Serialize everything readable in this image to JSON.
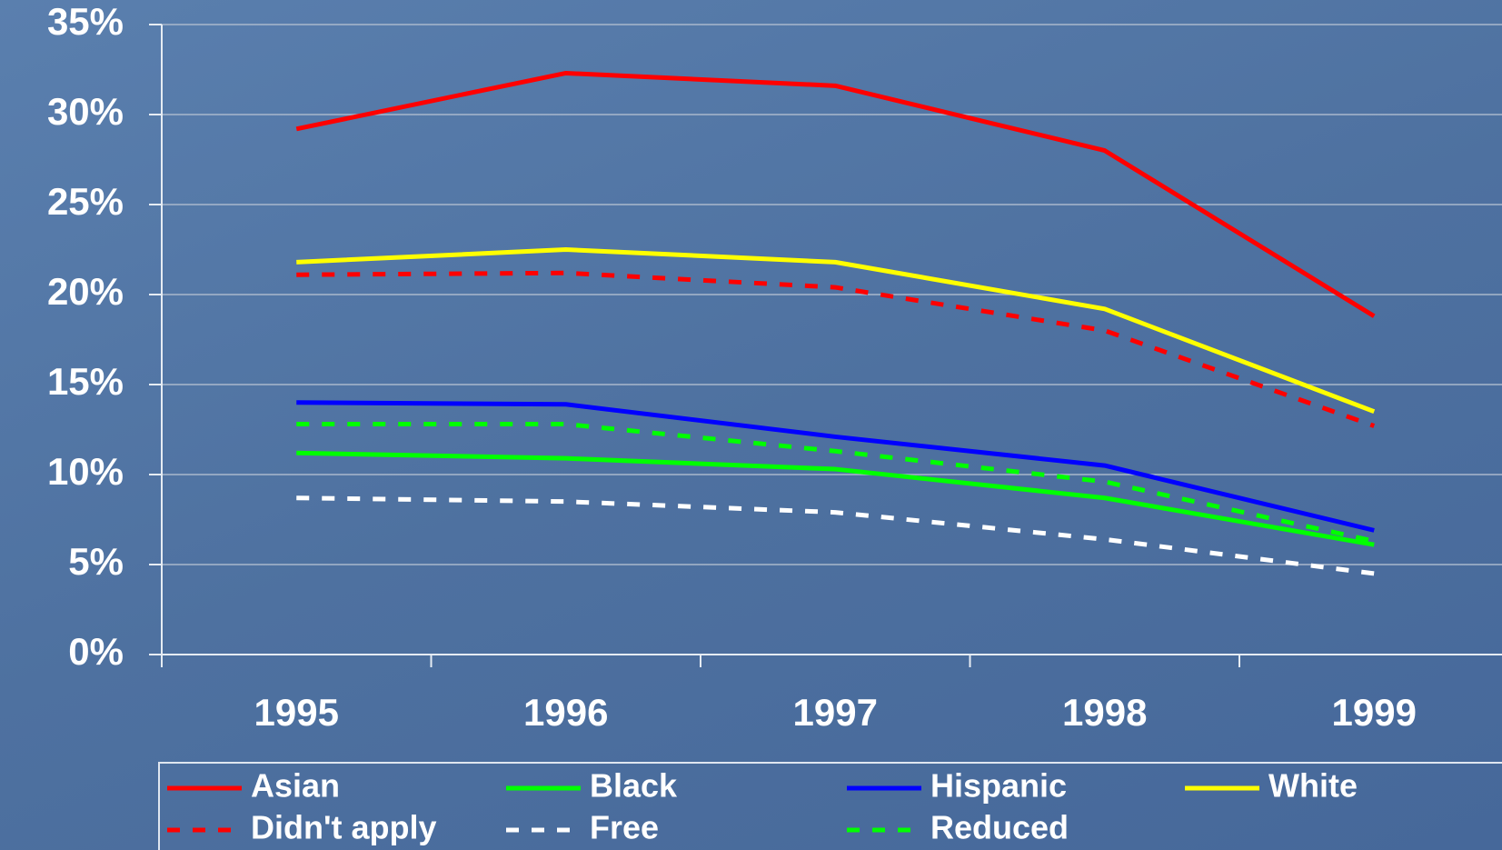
{
  "chart_data": {
    "type": "line",
    "categories": [
      "1995",
      "1996",
      "1997",
      "1998",
      "1999"
    ],
    "series": [
      {
        "name": "Asian",
        "color": "#ff0000",
        "style": "solid",
        "values": [
          29.2,
          32.3,
          31.6,
          28.0,
          18.8
        ]
      },
      {
        "name": "Black",
        "color": "#00ff00",
        "style": "solid",
        "values": [
          11.2,
          10.9,
          10.3,
          8.7,
          6.1
        ]
      },
      {
        "name": "Hispanic",
        "color": "#0000ff",
        "style": "solid",
        "values": [
          14.0,
          13.9,
          12.1,
          10.5,
          6.9
        ]
      },
      {
        "name": "White",
        "color": "#ffff00",
        "style": "solid",
        "values": [
          21.8,
          22.5,
          21.8,
          19.2,
          13.5
        ]
      },
      {
        "name": "Didn't apply",
        "color": "#ff0000",
        "style": "dashed",
        "values": [
          21.1,
          21.2,
          20.4,
          18.0,
          12.7
        ]
      },
      {
        "name": "Free",
        "color": "#ffffff",
        "style": "dashed",
        "values": [
          8.7,
          8.5,
          7.9,
          6.4,
          4.5
        ]
      },
      {
        "name": "Reduced",
        "color": "#00ff00",
        "style": "dashed",
        "values": [
          12.8,
          12.8,
          11.3,
          9.6,
          6.3
        ]
      }
    ],
    "ylim": [
      0,
      35
    ],
    "yticks": [
      {
        "value": 0,
        "label": "0%"
      },
      {
        "value": 5,
        "label": "5%"
      },
      {
        "value": 10,
        "label": "10%"
      },
      {
        "value": 15,
        "label": "15%"
      },
      {
        "value": 20,
        "label": "20%"
      },
      {
        "value": 25,
        "label": "25%"
      },
      {
        "value": 30,
        "label": "30%"
      },
      {
        "value": 35,
        "label": "35%"
      }
    ],
    "grid": true,
    "legend": "bottom"
  }
}
